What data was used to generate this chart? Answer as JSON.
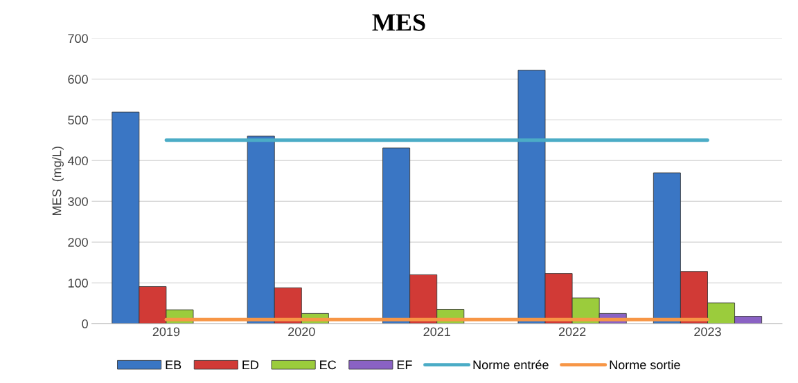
{
  "chart_data": {
    "type": "bar",
    "title": "MES",
    "ylabel": "MES  (mg/L)",
    "categories": [
      "2019",
      "2020",
      "2021",
      "2022",
      "2023"
    ],
    "series": [
      {
        "name": "EB",
        "color": "#3a76c4",
        "values": [
          519,
          460,
          431,
          622,
          370
        ]
      },
      {
        "name": "ED",
        "color": "#d13a36",
        "values": [
          91,
          88,
          120,
          123,
          128
        ]
      },
      {
        "name": "EC",
        "color": "#9bcc3c",
        "values": [
          34,
          25,
          35,
          63,
          51
        ]
      },
      {
        "name": "EF",
        "color": "#8a62c4",
        "values": [
          null,
          null,
          null,
          25,
          18
        ]
      },
      {
        "name": "Norme entrée",
        "type": "line",
        "color": "#4bacc6",
        "values": [
          450,
          450,
          450,
          450,
          450
        ]
      },
      {
        "name": "Norme sortie",
        "type": "line",
        "color": "#f79646",
        "values": [
          10,
          10,
          10,
          10,
          10
        ]
      }
    ],
    "ylim": [
      0,
      700
    ],
    "yticks": [
      0,
      100,
      200,
      300,
      400,
      500,
      600,
      700
    ],
    "grid": "y",
    "legend": "bottom"
  }
}
